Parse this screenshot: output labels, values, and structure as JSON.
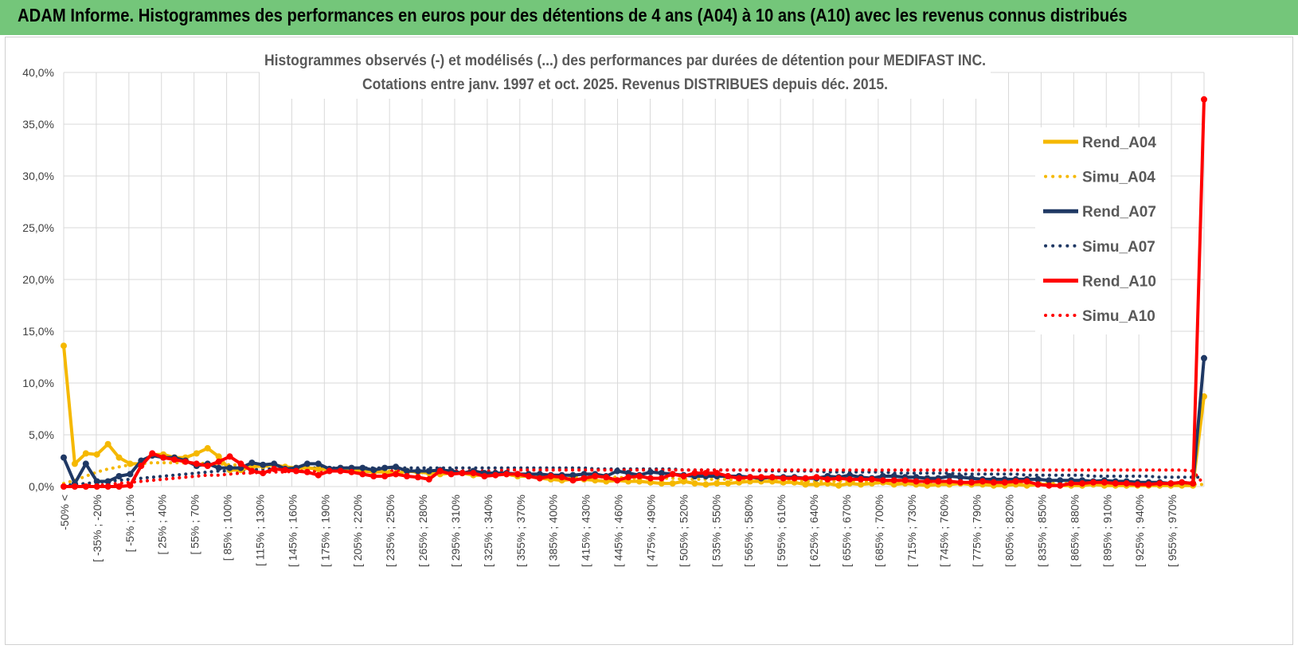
{
  "header": {
    "title": "ADAM Informe. Histogrammes des performances en euros pour des détentions de 4 ans (A04) à 10 ans (A10) avec les revenus connus distribués"
  },
  "colors": {
    "banner": "#74c67a",
    "a04": "#f5b800",
    "a07": "#1f3864",
    "a10": "#ff0000",
    "grid": "#d9d9d9"
  },
  "chart_data": {
    "type": "line",
    "title_lines": [
      "Histogrammes observés (-) et modélisés (...) des performances par durées de détention pour MEDIFAST INC.",
      "Cotations entre janv. 1997 et oct. 2025.  Revenus DISTRIBUES depuis déc. 2015."
    ],
    "ylim": [
      0,
      40
    ],
    "ytick_values": [
      0,
      5,
      10,
      15,
      20,
      25,
      30,
      35,
      40
    ],
    "ytick_labels": [
      "0,0%",
      "5,0%",
      "10,0%",
      "15,0%",
      "20,0%",
      "25,0%",
      "30,0%",
      "35,0%",
      "40,0%"
    ],
    "x_count": 35,
    "xtick_labels": [
      "-50% <",
      "[ -35% ; -20%",
      "[ -5% ; 10%",
      "[ 25% ; 40%",
      "[ 55% ; 70%",
      "[ 85% ; 100%",
      "[ 115% ; 130%",
      "[ 145% ; 160%",
      "[ 175% ; 190%",
      "[ 205% ; 220%",
      "[ 235% ; 250%",
      "[ 265% ; 280%",
      "[ 295% ; 310%",
      "[ 325% ; 340%",
      "[ 355% ; 370%",
      "[ 385% ; 400%",
      "[ 415% ; 430%",
      "[ 445% ; 460%",
      "[ 475% ; 490%",
      "[ 505% ; 520%",
      "[ 535% ; 550%",
      "[ 565% ; 580%",
      "[ 595% ; 610%",
      "[ 625% ; 640%",
      "[ 655% ; 670%",
      "[ 685% ; 700%",
      "[ 715% ; 730%",
      "[ 745% ; 760%",
      "[ 775% ; 790%",
      "[ 805% ; 820%",
      "[ 835% ; 850%",
      "[ 865% ; 880%",
      "[ 895% ; 910%",
      "[ 925% ; 940%",
      "[ 955% ; 970%"
    ],
    "legend_position": "right",
    "series": [
      {
        "name": "Rend_A04",
        "style": "solid",
        "color": "#f5b800",
        "values": [
          13.6,
          2.2,
          3.2,
          3.1,
          4.1,
          2.8,
          2.2,
          2.2,
          3.1,
          3.1,
          2.8,
          2.8,
          3.2,
          3.7,
          2.9,
          1.6,
          1.6,
          1.9,
          2.0,
          2.1,
          1.9,
          1.8,
          1.8,
          1.7,
          1.6,
          1.7,
          1.6,
          1.5,
          1.4,
          1.4,
          1.2,
          1.5,
          1.4,
          1.3,
          1.2,
          1.3,
          1.3,
          1.1,
          1.1,
          1.2,
          1.2,
          1.0,
          1.0,
          0.8,
          0.7,
          0.6,
          0.7,
          0.7,
          0.6,
          0.5,
          0.6,
          0.5,
          0.5,
          0.4,
          0.3,
          0.3,
          0.5,
          0.3,
          0.2,
          0.3,
          0.3,
          0.4,
          0.5,
          0.5,
          0.5,
          0.4,
          0.4,
          0.2,
          0.2,
          0.3,
          0.1,
          0.3,
          0.2,
          0.3,
          0.4,
          0.2,
          0.3,
          0.2,
          0.1,
          0.2,
          0.2,
          0.3,
          0.2,
          0.2,
          0.1,
          0.1,
          0.2,
          0.1,
          0.2,
          0.2,
          0.1,
          0.1,
          0.1,
          0.2,
          0.1,
          0.1,
          0.1,
          0.1,
          0.1,
          0.1,
          0.1,
          0.1,
          0.1,
          8.7
        ]
      },
      {
        "name": "Simu_A04",
        "style": "dotted",
        "color": "#f5b800",
        "values": [
          0.3,
          0.6,
          1.0,
          1.4,
          1.7,
          1.9,
          2.1,
          2.2,
          2.3,
          2.3,
          2.3,
          2.3,
          2.3,
          2.2,
          2.2,
          2.1,
          2.1,
          2.0,
          2.0,
          1.9,
          1.9,
          1.8,
          1.8,
          1.7,
          1.7,
          1.7,
          1.6,
          1.6,
          1.5,
          1.5,
          1.5,
          1.4,
          1.4,
          1.4,
          1.3,
          1.3,
          1.3,
          1.2,
          1.2,
          1.2,
          1.1,
          1.1,
          1.1,
          1.0,
          1.0,
          1.0,
          1.0,
          0.9,
          0.9,
          0.9,
          0.9,
          0.8,
          0.8,
          0.8,
          0.8,
          0.8,
          0.7,
          0.7,
          0.7,
          0.7,
          0.7,
          0.6,
          0.6,
          0.6,
          0.6,
          0.6,
          0.6,
          0.5,
          0.5,
          0.5,
          0.5,
          0.5,
          0.5,
          0.5,
          0.4,
          0.4,
          0.4,
          0.4,
          0.4,
          0.4,
          0.4,
          0.4,
          0.4,
          0.3,
          0.3,
          0.3,
          0.3,
          0.3,
          0.3,
          0.3,
          0.3,
          0.3,
          0.3,
          0.3,
          0.3,
          0.2,
          0.2,
          0.2,
          0.2,
          0.2,
          0.2,
          0.2,
          0.2,
          0.2
        ]
      },
      {
        "name": "Rend_A07",
        "style": "solid",
        "color": "#1f3864",
        "values": [
          2.8,
          0.3,
          2.2,
          0.5,
          0.5,
          1.0,
          1.2,
          2.5,
          3.0,
          2.8,
          2.8,
          2.5,
          2.0,
          2.2,
          1.8,
          1.8,
          1.8,
          2.3,
          2.1,
          2.2,
          1.7,
          1.8,
          2.2,
          2.2,
          1.7,
          1.8,
          1.8,
          1.8,
          1.6,
          1.8,
          1.9,
          1.5,
          1.5,
          1.5,
          1.6,
          1.5,
          1.3,
          1.5,
          1.3,
          1.3,
          1.3,
          1.2,
          1.2,
          1.2,
          1.1,
          1.1,
          1.1,
          1.2,
          1.2,
          1.0,
          1.5,
          1.3,
          1.1,
          1.4,
          1.3,
          1.2,
          1.1,
          1.0,
          1.0,
          1.0,
          1.0,
          1.0,
          0.9,
          0.8,
          0.9,
          0.9,
          0.9,
          0.8,
          0.8,
          1.0,
          0.9,
          1.1,
          0.9,
          0.8,
          1.0,
          1.0,
          0.9,
          0.9,
          0.8,
          0.8,
          1.0,
          0.9,
          0.8,
          0.7,
          0.7,
          0.7,
          0.7,
          0.7,
          0.7,
          0.6,
          0.6,
          0.6,
          0.6,
          0.5,
          0.6,
          0.5,
          0.5,
          0.4,
          0.4,
          0.4,
          0.3,
          0.4,
          0.3,
          12.4
        ]
      },
      {
        "name": "Simu_A07",
        "style": "dotted",
        "color": "#1f3864",
        "values": [
          0.1,
          0.2,
          0.3,
          0.4,
          0.5,
          0.6,
          0.7,
          0.8,
          0.9,
          1.0,
          1.1,
          1.2,
          1.3,
          1.4,
          1.5,
          1.5,
          1.6,
          1.6,
          1.7,
          1.7,
          1.7,
          1.8,
          1.8,
          1.8,
          1.8,
          1.8,
          1.8,
          1.8,
          1.8,
          1.8,
          1.8,
          1.8,
          1.8,
          1.8,
          1.8,
          1.8,
          1.8,
          1.8,
          1.8,
          1.8,
          1.8,
          1.8,
          1.8,
          1.8,
          1.8,
          1.8,
          1.8,
          1.8,
          1.7,
          1.7,
          1.7,
          1.7,
          1.7,
          1.7,
          1.7,
          1.7,
          1.6,
          1.6,
          1.6,
          1.6,
          1.6,
          1.6,
          1.6,
          1.5,
          1.5,
          1.5,
          1.5,
          1.5,
          1.5,
          1.4,
          1.4,
          1.4,
          1.4,
          1.4,
          1.4,
          1.3,
          1.3,
          1.3,
          1.3,
          1.3,
          1.3,
          1.2,
          1.2,
          1.2,
          1.2,
          1.2,
          1.2,
          1.1,
          1.1,
          1.1,
          1.1,
          1.1,
          1.1,
          1.0,
          1.0,
          1.0,
          1.0,
          1.0,
          1.0,
          0.9,
          0.9,
          0.9,
          0.9,
          0.9
        ]
      },
      {
        "name": "Rend_A10",
        "style": "solid",
        "color": "#ff0000",
        "values": [
          0.0,
          0.0,
          0.0,
          0.0,
          0.0,
          0.0,
          0.1,
          2.0,
          3.2,
          2.8,
          2.6,
          2.4,
          2.2,
          2.0,
          2.4,
          2.9,
          2.2,
          1.5,
          1.3,
          1.7,
          1.6,
          1.5,
          1.4,
          1.1,
          1.5,
          1.5,
          1.4,
          1.2,
          1.0,
          1.0,
          1.2,
          1.0,
          0.9,
          0.7,
          1.5,
          1.2,
          1.3,
          1.3,
          1.0,
          1.1,
          1.2,
          1.2,
          1.0,
          0.8,
          1.0,
          0.9,
          0.6,
          0.8,
          1.0,
          0.9,
          0.6,
          0.9,
          1.0,
          0.8,
          0.8,
          1.2,
          1.0,
          1.3,
          1.3,
          1.3,
          1.0,
          0.8,
          0.9,
          0.9,
          0.9,
          0.8,
          0.8,
          0.8,
          0.9,
          0.7,
          0.8,
          0.7,
          0.7,
          0.7,
          0.6,
          0.6,
          0.6,
          0.5,
          0.5,
          0.5,
          0.5,
          0.4,
          0.4,
          0.5,
          0.4,
          0.4,
          0.5,
          0.5,
          0.2,
          0.1,
          0.1,
          0.3,
          0.3,
          0.4,
          0.4,
          0.3,
          0.3,
          0.2,
          0.2,
          0.3,
          0.3,
          0.4,
          0.3,
          37.4
        ]
      },
      {
        "name": "Simu_A10",
        "style": "dotted",
        "color": "#ff0000",
        "values": [
          0.0,
          0.0,
          0.1,
          0.1,
          0.2,
          0.3,
          0.4,
          0.5,
          0.6,
          0.7,
          0.8,
          0.9,
          1.0,
          1.1,
          1.1,
          1.2,
          1.3,
          1.3,
          1.4,
          1.4,
          1.4,
          1.5,
          1.5,
          1.5,
          1.5,
          1.5,
          1.5,
          1.5,
          1.5,
          1.5,
          1.5,
          1.5,
          1.5,
          1.5,
          1.5,
          1.5,
          1.5,
          1.5,
          1.5,
          1.5,
          1.6,
          1.6,
          1.6,
          1.6,
          1.6,
          1.6,
          1.6,
          1.6,
          1.6,
          1.6,
          1.6,
          1.6,
          1.6,
          1.6,
          1.6,
          1.6,
          1.6,
          1.6,
          1.6,
          1.6,
          1.6,
          1.6,
          1.6,
          1.6,
          1.6,
          1.6,
          1.6,
          1.6,
          1.6,
          1.6,
          1.6,
          1.6,
          1.6,
          1.6,
          1.6,
          1.6,
          1.6,
          1.6,
          1.6,
          1.6,
          1.6,
          1.6,
          1.6,
          1.6,
          1.6,
          1.6,
          1.6,
          1.6,
          1.6,
          1.6,
          1.6,
          1.6,
          1.6,
          1.6,
          1.6,
          1.6,
          1.6,
          1.6,
          1.6,
          1.6,
          1.6,
          1.6,
          1.5,
          0.2
        ]
      }
    ]
  }
}
